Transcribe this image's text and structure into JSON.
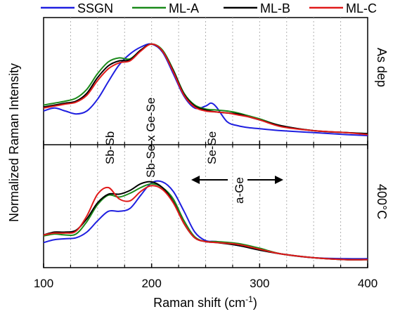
{
  "chart_data": {
    "type": "line",
    "xlabel": "Raman shift (cm",
    "xlabel_sup": "-1",
    "xlabel_close": ")",
    "ylabel": "Normalized Raman Intensity",
    "xlim": [
      100,
      400
    ],
    "x_ticks": [
      100,
      200,
      300,
      400
    ],
    "x_minor_grid": [
      125,
      150,
      175,
      225,
      250,
      275,
      325,
      350,
      375
    ],
    "grid": "dotted vertical",
    "legend_position": "top",
    "series_colors": {
      "SSGN": "#1f1fe0",
      "ML-A": "#1a8a1a",
      "ML-B": "#000000",
      "ML-C": "#e01a1a"
    },
    "legend": [
      {
        "name": "SSGN",
        "color": "#1f1fe0"
      },
      {
        "name": "ML-A",
        "color": "#1a8a1a"
      },
      {
        "name": "ML-B",
        "color": "#000000"
      },
      {
        "name": "ML-C",
        "color": "#e01a1a"
      }
    ],
    "annotations": {
      "sbsb": "Sb-Sb",
      "sbse": "Sb-Se x Ge-Se",
      "sese": "Se-Se",
      "age": "a-Ge"
    },
    "panels": [
      {
        "label": "As dep",
        "ylim": [
          0,
          1
        ],
        "series": [
          {
            "name": "SSGN",
            "x": [
              100,
              110,
              120,
              130,
              140,
              150,
              160,
              170,
              180,
              190,
              200,
              210,
              220,
              230,
              240,
              250,
              255,
              260,
              270,
              280,
              290,
              300,
              320,
              350,
              380,
              400
            ],
            "y": [
              0.3,
              0.33,
              0.3,
              0.27,
              0.3,
              0.42,
              0.6,
              0.77,
              0.88,
              0.95,
              0.98,
              0.9,
              0.68,
              0.45,
              0.33,
              0.35,
              0.38,
              0.34,
              0.19,
              0.15,
              0.13,
              0.12,
              0.1,
              0.08,
              0.06,
              0.05
            ]
          },
          {
            "name": "ML-A",
            "x": [
              100,
              110,
              120,
              130,
              140,
              150,
              160,
              170,
              180,
              190,
              200,
              210,
              220,
              230,
              240,
              250,
              260,
              270,
              280,
              290,
              300,
              320,
              350,
              380,
              400
            ],
            "y": [
              0.36,
              0.38,
              0.4,
              0.43,
              0.52,
              0.68,
              0.8,
              0.84,
              0.83,
              0.92,
              0.98,
              0.92,
              0.72,
              0.48,
              0.36,
              0.32,
              0.31,
              0.3,
              0.28,
              0.25,
              0.22,
              0.15,
              0.1,
              0.08,
              0.07
            ]
          },
          {
            "name": "ML-B",
            "x": [
              100,
              110,
              120,
              130,
              140,
              150,
              160,
              170,
              180,
              190,
              200,
              210,
              220,
              230,
              240,
              250,
              260,
              270,
              280,
              290,
              300,
              320,
              350,
              380,
              400
            ],
            "y": [
              0.34,
              0.36,
              0.38,
              0.4,
              0.48,
              0.64,
              0.76,
              0.81,
              0.82,
              0.92,
              0.98,
              0.91,
              0.71,
              0.47,
              0.35,
              0.31,
              0.29,
              0.28,
              0.27,
              0.24,
              0.21,
              0.15,
              0.1,
              0.08,
              0.07
            ]
          },
          {
            "name": "ML-C",
            "x": [
              100,
              110,
              120,
              130,
              140,
              150,
              160,
              170,
              180,
              190,
              200,
              210,
              220,
              230,
              240,
              250,
              260,
              270,
              280,
              290,
              300,
              320,
              350,
              380,
              400
            ],
            "y": [
              0.33,
              0.35,
              0.37,
              0.39,
              0.46,
              0.61,
              0.73,
              0.79,
              0.81,
              0.91,
              0.98,
              0.91,
              0.7,
              0.46,
              0.34,
              0.3,
              0.29,
              0.28,
              0.26,
              0.24,
              0.21,
              0.14,
              0.1,
              0.08,
              0.06
            ]
          }
        ]
      },
      {
        "label": "400°C",
        "ylim": [
          0,
          1
        ],
        "series": [
          {
            "name": "SSGN",
            "x": [
              100,
              110,
              120,
              130,
              140,
              150,
              160,
              170,
              180,
              190,
              200,
              210,
              220,
              230,
              240,
              250,
              260,
              280,
              300,
              320,
              350,
              380,
              400
            ],
            "y": [
              0.22,
              0.25,
              0.26,
              0.27,
              0.33,
              0.45,
              0.55,
              0.55,
              0.58,
              0.72,
              0.85,
              0.86,
              0.76,
              0.55,
              0.33,
              0.24,
              0.23,
              0.19,
              0.15,
              0.1,
              0.06,
              0.05,
              0.05
            ]
          },
          {
            "name": "ML-A",
            "x": [
              100,
              110,
              120,
              130,
              140,
              150,
              160,
              170,
              180,
              190,
              200,
              210,
              220,
              230,
              240,
              250,
              260,
              280,
              300,
              320,
              350,
              380,
              400
            ],
            "y": [
              0.29,
              0.31,
              0.3,
              0.31,
              0.44,
              0.62,
              0.72,
              0.7,
              0.74,
              0.8,
              0.84,
              0.8,
              0.68,
              0.45,
              0.28,
              0.23,
              0.23,
              0.21,
              0.16,
              0.1,
              0.06,
              0.04,
              0.04
            ]
          },
          {
            "name": "ML-B",
            "x": [
              100,
              110,
              120,
              130,
              140,
              150,
              160,
              170,
              180,
              190,
              200,
              210,
              220,
              230,
              240,
              250,
              260,
              280,
              300,
              320,
              350,
              380,
              400
            ],
            "y": [
              0.3,
              0.33,
              0.33,
              0.35,
              0.47,
              0.64,
              0.73,
              0.73,
              0.77,
              0.84,
              0.86,
              0.8,
              0.65,
              0.42,
              0.27,
              0.23,
              0.22,
              0.19,
              0.14,
              0.1,
              0.06,
              0.04,
              0.04
            ]
          },
          {
            "name": "ML-C",
            "x": [
              100,
              110,
              120,
              130,
              140,
              150,
              160,
              170,
              180,
              190,
              200,
              210,
              220,
              230,
              240,
              250,
              260,
              280,
              300,
              320,
              350,
              380,
              400
            ],
            "y": [
              0.3,
              0.32,
              0.32,
              0.34,
              0.5,
              0.73,
              0.8,
              0.68,
              0.66,
              0.76,
              0.82,
              0.78,
              0.64,
              0.42,
              0.27,
              0.23,
              0.22,
              0.2,
              0.15,
              0.1,
              0.06,
              0.04,
              0.04
            ]
          }
        ]
      }
    ]
  }
}
